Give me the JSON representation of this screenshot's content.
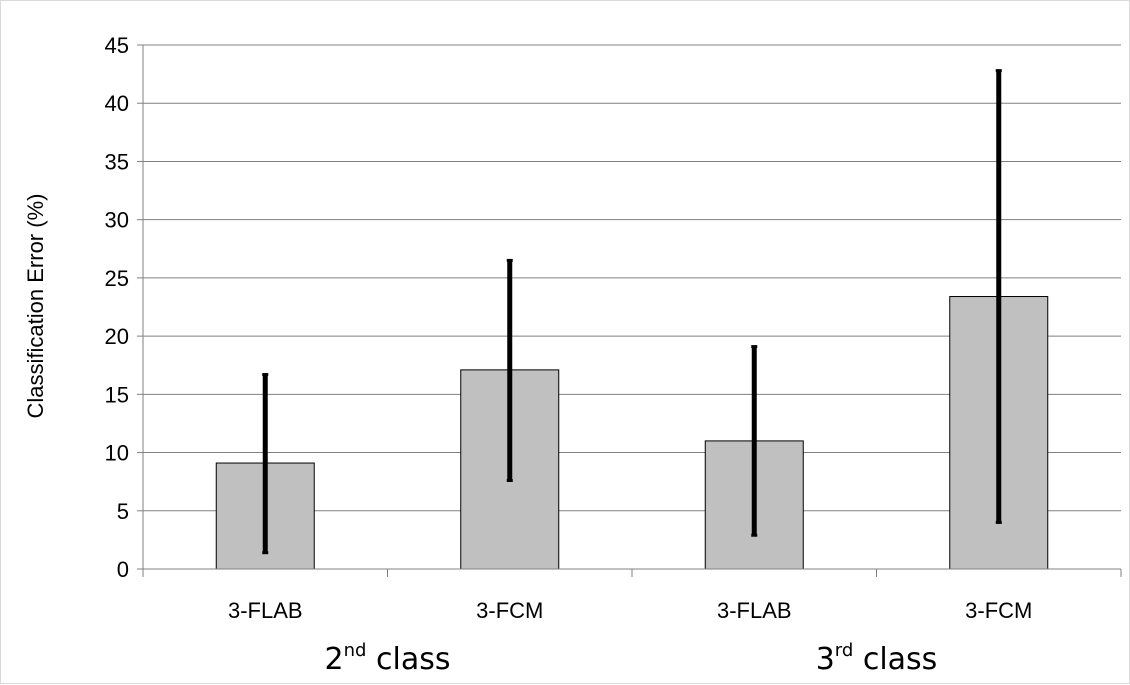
{
  "chart_data": {
    "type": "bar",
    "ylabel": "Classification Error (%)",
    "ylim": [
      0,
      45
    ],
    "yticks": [
      0,
      5,
      10,
      15,
      20,
      25,
      30,
      35,
      40,
      45
    ],
    "grid": true,
    "categories": [
      "3-FLAB",
      "3-FCM",
      "3-FLAB",
      "3-FCM"
    ],
    "values": [
      9.1,
      17.1,
      11.0,
      23.4
    ],
    "error_low": [
      1.4,
      7.6,
      2.9,
      4.0
    ],
    "error_high": [
      16.7,
      26.5,
      19.1,
      42.8
    ],
    "groups": [
      {
        "base": "2",
        "sup": "nd",
        "rest": " class",
        "span": [
          0,
          1
        ]
      },
      {
        "base": "3",
        "sup": "rd",
        "rest": " class",
        "span": [
          2,
          3
        ]
      }
    ],
    "bar_color": "#c0c0c0",
    "error_color": "#000000",
    "grid_color": "#808080"
  }
}
